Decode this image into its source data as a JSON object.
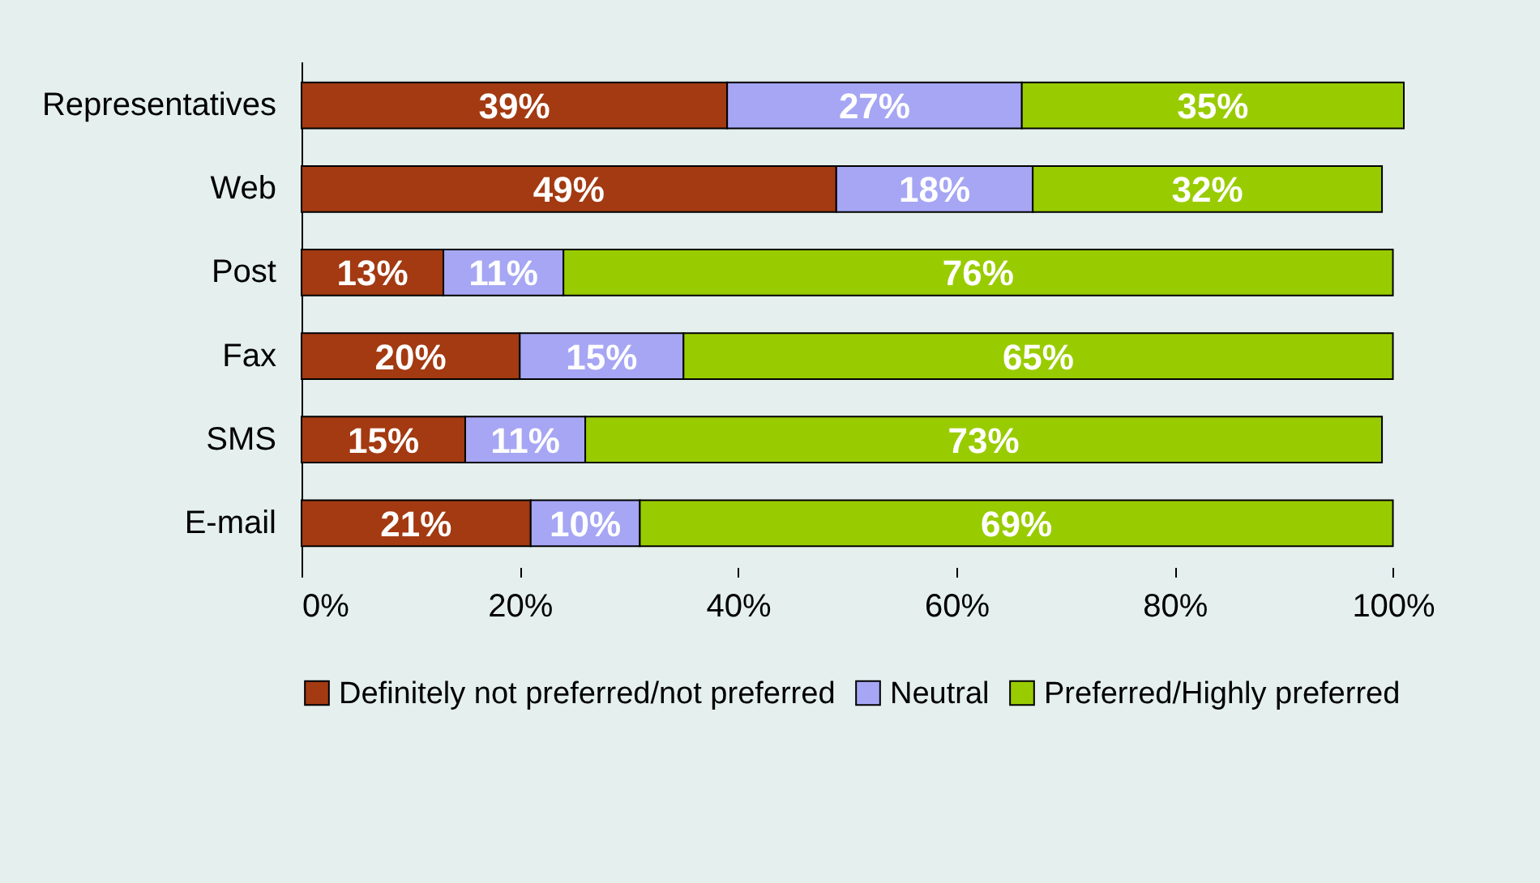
{
  "chart_data": {
    "type": "bar",
    "orientation": "horizontal",
    "stacked": true,
    "categories": [
      "Representatives",
      "Web",
      "Post",
      "Fax",
      "SMS",
      "E-mail"
    ],
    "series": [
      {
        "name": "Definitely not preferred/not preferred",
        "color": "#a33a12",
        "values": [
          39,
          49,
          13,
          20,
          15,
          21
        ],
        "value_labels": [
          "39%",
          "49%",
          "13%",
          "20%",
          "15%",
          "21%"
        ]
      },
      {
        "name": "Neutral",
        "color": "#a6a6f4",
        "values": [
          27,
          18,
          11,
          15,
          11,
          10
        ],
        "value_labels": [
          "27%",
          "18%",
          "11%",
          "15%",
          "11%",
          "10%"
        ]
      },
      {
        "name": "Preferred/Highly preferred",
        "color": "#99cc00",
        "values": [
          35,
          32,
          76,
          65,
          73,
          69
        ],
        "value_labels": [
          "35%",
          "32%",
          "76%",
          "65%",
          "73%",
          "69%"
        ]
      }
    ],
    "xlim": [
      0,
      101
    ],
    "xticks": [
      {
        "value": 0,
        "label": "0%"
      },
      {
        "value": 20,
        "label": "20%"
      },
      {
        "value": 40,
        "label": "40%"
      },
      {
        "value": 60,
        "label": "60%"
      },
      {
        "value": 80,
        "label": "80%"
      },
      {
        "value": 100,
        "label": "100%"
      }
    ],
    "grid": false,
    "legend": "bottom"
  }
}
